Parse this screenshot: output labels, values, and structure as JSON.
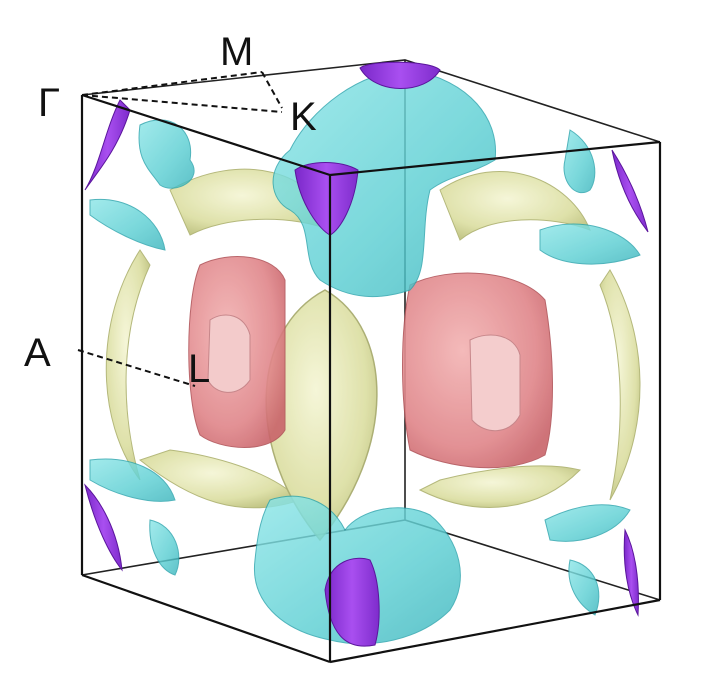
{
  "figure": {
    "labels": {
      "gamma": "Γ",
      "m": "M",
      "k": "K",
      "a": "A",
      "l": "L"
    },
    "colors": {
      "cyan_sheet": "#5fd3d6",
      "purple_sheet": "#9b3fe0",
      "yellow_sheet": "#dfe2a6",
      "red_sheet": "#df7c80",
      "edges": "#111111"
    }
  }
}
